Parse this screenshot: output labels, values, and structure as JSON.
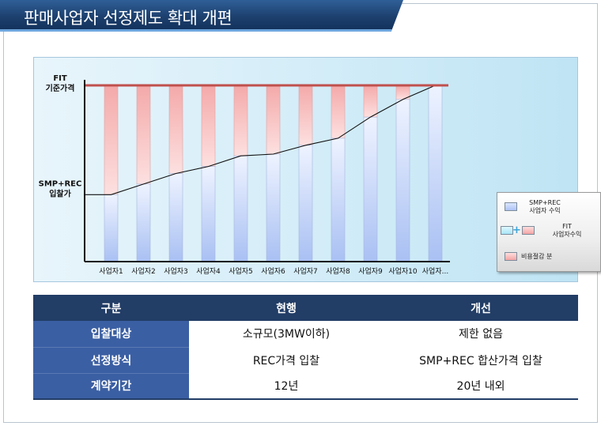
{
  "title": "판매사업자 선정제도 확대 개편",
  "chart_data": {
    "type": "bar",
    "categories": [
      "사업자1",
      "사업자2",
      "사업자3",
      "사업자4",
      "사업자5",
      "사업자6",
      "사업자7",
      "사업자8",
      "사업자9",
      "사업자10",
      "사업자..."
    ],
    "y_labels": {
      "top": "FIT\n기준가격",
      "middle": "SMP+REC\n입찰가"
    },
    "series": [
      {
        "name": "SMP+REC\n사업자 수익",
        "values": [
          38,
          44,
          50,
          54,
          60,
          61,
          66,
          70,
          82,
          92,
          100
        ]
      },
      {
        "name": "비용절감 분",
        "values": [
          62,
          56,
          50,
          46,
          40,
          39,
          34,
          30,
          18,
          8,
          0
        ]
      }
    ],
    "fit_line": 100,
    "ylim": [
      0,
      100
    ],
    "legend": {
      "position": "right",
      "items": [
        {
          "label": "SMP+REC\n사업자 수익",
          "color": "#b7cbf5"
        },
        {
          "label": "FIT\n사업자수익",
          "color": "#a9e5f8"
        },
        {
          "label": "비용절감 분",
          "color": "#f3a3a3"
        }
      ]
    },
    "colors": {
      "revenue": "#b7cbf5",
      "savings": "#f3a3a3",
      "fit_line": "#c0504d",
      "axis": "#111111"
    }
  },
  "table": {
    "headers": [
      "구분",
      "현행",
      "개선"
    ],
    "rows": [
      [
        "입찰대상",
        "소규모(3MW이하)",
        "제한 없음"
      ],
      [
        "선정방식",
        "REC가격 입찰",
        "SMP+REC 합산가격 입찰"
      ],
      [
        "계약기간",
        "12년",
        "20년 내외"
      ]
    ]
  }
}
